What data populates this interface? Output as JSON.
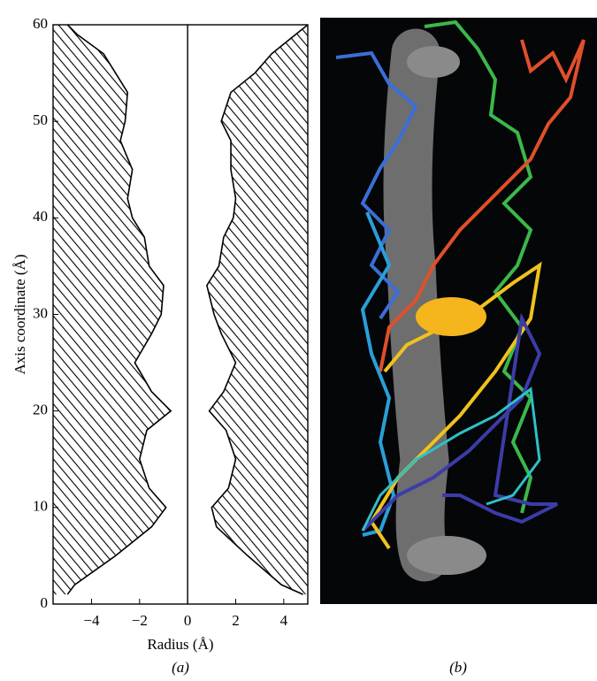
{
  "chart_data": {
    "type": "profile",
    "xlabel": "Radius (Å)",
    "ylabel": "Axis coordinate (Å)",
    "panel_labels": [
      "(a)",
      "(b)"
    ],
    "xlim": [
      -5.6,
      5
    ],
    "ylim": [
      0,
      60
    ],
    "xticks": [
      {
        "value": -4,
        "label": "−4"
      },
      {
        "value": -2,
        "label": "−2"
      },
      0,
      2,
      4
    ],
    "yticks": [
      0,
      10,
      20,
      30,
      40,
      50,
      60
    ],
    "y": [
      1,
      2,
      5,
      8,
      10,
      12,
      15,
      18,
      20,
      22,
      25,
      28,
      30,
      33,
      35,
      38,
      40,
      42,
      45,
      48,
      50,
      53,
      55,
      57,
      59,
      60
    ],
    "series": [
      {
        "values": [
          -5.0,
          -4.7,
          -3.0,
          -1.5,
          -0.9,
          -1.6,
          -2.0,
          -1.7,
          -0.7,
          -1.5,
          -2.2,
          -1.5,
          -1.1,
          -1.0,
          -1.6,
          -1.8,
          -2.3,
          -2.5,
          -2.3,
          -2.8,
          -2.6,
          -2.5,
          -3.0,
          -3.5,
          -4.6,
          -5.0
        ]
      },
      {
        "values": [
          4.8,
          3.9,
          2.5,
          1.2,
          1.0,
          1.7,
          2.0,
          1.6,
          0.9,
          1.5,
          2.0,
          1.4,
          1.1,
          0.8,
          1.3,
          1.5,
          1.9,
          2.0,
          1.8,
          1.8,
          1.4,
          1.8,
          2.8,
          3.5,
          4.5,
          5.0
        ]
      }
    ]
  }
}
